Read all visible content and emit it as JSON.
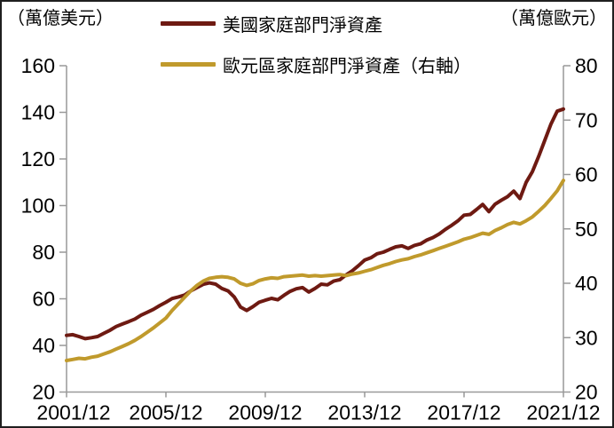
{
  "page": {
    "background": "#ffffff",
    "border_color": "#1f1f1f",
    "axis_line_color": "#999999"
  },
  "left_axis_title": "（萬億美元）",
  "right_axis_title": "（萬億歐元）",
  "legend": [
    {
      "label": "美國家庭部門淨資產",
      "color": "#6E1A12"
    },
    {
      "label": "歐元區家庭部門淨資產（右軸）",
      "color": "#C09A2C"
    }
  ],
  "chart_data": {
    "type": "line",
    "frequency": "quarterly",
    "x_start": "2001/12",
    "x_end": "2021/12",
    "x_tick_labels": [
      "2001/12",
      "2005/12",
      "2009/12",
      "2013/12",
      "2017/12",
      "2021/12"
    ],
    "left_axis": {
      "title": "（萬億美元）",
      "min": 20,
      "max": 160,
      "ticks": [
        160,
        140,
        120,
        100,
        80,
        60,
        40,
        20
      ]
    },
    "right_axis": {
      "title": "（萬億歐元）",
      "min": 20,
      "max": 80,
      "ticks": [
        80,
        70,
        60,
        50,
        40,
        30,
        20
      ]
    },
    "grid": false,
    "legend_position": "top",
    "series": [
      {
        "name": "美國家庭部門淨資產",
        "axis": "left",
        "color": "#6E1A12",
        "values": [
          44.3,
          44.6,
          43.8,
          42.9,
          43.3,
          43.8,
          45.2,
          46.5,
          48.1,
          49.2,
          50.2,
          51.3,
          53.0,
          54.2,
          55.5,
          57.1,
          58.5,
          60.1,
          60.8,
          61.6,
          63.4,
          64.8,
          66.2,
          66.8,
          66.3,
          64.4,
          63.4,
          60.8,
          56.5,
          55.0,
          56.6,
          58.5,
          59.4,
          60.2,
          59.6,
          61.5,
          63.2,
          64.3,
          64.8,
          62.9,
          64.4,
          66.3,
          66.0,
          67.6,
          68.2,
          70.2,
          72.0,
          74.2,
          76.6,
          77.6,
          79.3,
          80.0,
          81.2,
          82.3,
          82.7,
          81.6,
          82.9,
          83.6,
          85.2,
          86.3,
          87.8,
          89.8,
          91.5,
          93.4,
          95.9,
          96.2,
          98.3,
          100.5,
          97.4,
          100.6,
          102.3,
          103.8,
          106.2,
          103.0,
          110.0,
          114.5,
          121.0,
          128.0,
          135.0,
          140.5,
          141.4
        ]
      },
      {
        "name": "歐元區家庭部門淨資產（右軸）",
        "axis": "right",
        "color": "#C09A2C",
        "values": [
          25.8,
          26.0,
          26.2,
          26.1,
          26.4,
          26.6,
          27.0,
          27.4,
          27.9,
          28.4,
          28.9,
          29.5,
          30.2,
          31.0,
          31.8,
          32.7,
          33.6,
          35.0,
          36.2,
          37.4,
          38.6,
          39.6,
          40.4,
          40.9,
          41.1,
          41.2,
          41.1,
          40.8,
          40.0,
          39.6,
          39.9,
          40.5,
          40.8,
          41.0,
          40.9,
          41.2,
          41.3,
          41.4,
          41.5,
          41.3,
          41.4,
          41.3,
          41.4,
          41.5,
          41.6,
          41.4,
          41.7,
          41.9,
          42.2,
          42.5,
          42.9,
          43.3,
          43.6,
          44.0,
          44.3,
          44.5,
          44.9,
          45.2,
          45.6,
          46.0,
          46.4,
          46.8,
          47.2,
          47.6,
          48.1,
          48.4,
          48.8,
          49.2,
          49.0,
          49.7,
          50.2,
          50.8,
          51.2,
          50.9,
          51.5,
          52.2,
          53.2,
          54.3,
          55.6,
          57.0,
          58.9
        ]
      }
    ]
  }
}
